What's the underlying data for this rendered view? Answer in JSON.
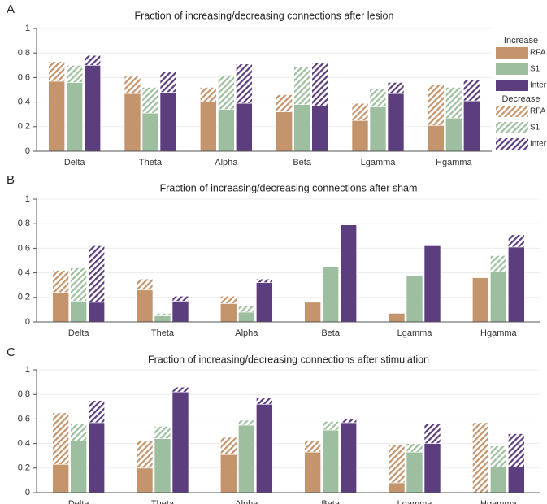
{
  "chart_data": [
    {
      "type": "bar",
      "label": "A",
      "title": "Fraction of increasing/decreasing connections after lesion",
      "categories": [
        "Delta",
        "Theta",
        "Alpha",
        "Beta",
        "Lgamma",
        "Hgamma"
      ],
      "ylim": [
        0,
        1
      ],
      "yticks": [
        0,
        0.2,
        0.4,
        0.6,
        0.8,
        1
      ],
      "grid": true,
      "legend_titles": [
        "Increase",
        "Decrease"
      ],
      "series": [
        {
          "name": "RFA",
          "color": "#c4956c",
          "hatch": false,
          "values": [
            0.57,
            0.47,
            0.4,
            0.32,
            0.25,
            0.21
          ]
        },
        {
          "name": "S1",
          "color": "#9ebf9f",
          "hatch": false,
          "values": [
            0.56,
            0.31,
            0.34,
            0.38,
            0.36,
            0.27
          ]
        },
        {
          "name": "Inter",
          "color": "#5c3d7e",
          "hatch": false,
          "values": [
            0.7,
            0.48,
            0.39,
            0.37,
            0.47,
            0.41
          ]
        },
        {
          "name": "RFA",
          "color": "#c4956c",
          "hatch": true,
          "values": [
            0.16,
            0.14,
            0.12,
            0.14,
            0.14,
            0.33
          ]
        },
        {
          "name": "S1",
          "color": "#9ebf9f",
          "hatch": true,
          "values": [
            0.14,
            0.21,
            0.28,
            0.31,
            0.15,
            0.25
          ]
        },
        {
          "name": "Inter",
          "color": "#5c3d7e",
          "hatch": true,
          "values": [
            0.08,
            0.17,
            0.32,
            0.35,
            0.09,
            0.17
          ]
        }
      ]
    },
    {
      "type": "bar",
      "label": "B",
      "title": "Fraction of increasing/decreasing connections after sham",
      "categories": [
        "Delta",
        "Theta",
        "Alpha",
        "Beta",
        "Lgamma",
        "Hgamma"
      ],
      "ylim": [
        0,
        1
      ],
      "yticks": [
        0,
        0.2,
        0.4,
        0.6,
        0.8,
        1
      ],
      "grid": true,
      "series": [
        {
          "color": "#c4956c",
          "hatch": false,
          "values": [
            0.24,
            0.26,
            0.15,
            0.16,
            0.07,
            0.36
          ]
        },
        {
          "color": "#9ebf9f",
          "hatch": false,
          "values": [
            0.17,
            0.05,
            0.08,
            0.45,
            0.38,
            0.41
          ]
        },
        {
          "color": "#5c3d7e",
          "hatch": false,
          "values": [
            0.16,
            0.17,
            0.32,
            0.79,
            0.62,
            0.61
          ]
        },
        {
          "color": "#c4956c",
          "hatch": true,
          "values": [
            0.18,
            0.09,
            0.06,
            0,
            0,
            0
          ]
        },
        {
          "color": "#9ebf9f",
          "hatch": true,
          "values": [
            0.27,
            0.02,
            0.05,
            0,
            0,
            0.13
          ]
        },
        {
          "color": "#5c3d7e",
          "hatch": true,
          "values": [
            0.46,
            0.04,
            0.03,
            0,
            0,
            0.1
          ]
        }
      ]
    },
    {
      "type": "bar",
      "label": "C",
      "title": "Fraction of increasing/decreasing connections after stimulation",
      "categories": [
        "Delta",
        "Theta",
        "Alpha",
        "Beta",
        "Lgamma",
        "Hgamma"
      ],
      "ylim": [
        0,
        1
      ],
      "yticks": [
        0,
        0.2,
        0.4,
        0.6,
        0.8,
        1
      ],
      "grid": true,
      "series": [
        {
          "color": "#c4956c",
          "hatch": false,
          "values": [
            0.23,
            0.2,
            0.31,
            0.33,
            0.08,
            0
          ]
        },
        {
          "color": "#9ebf9f",
          "hatch": false,
          "values": [
            0.42,
            0.44,
            0.55,
            0.51,
            0.33,
            0.21
          ]
        },
        {
          "color": "#5c3d7e",
          "hatch": false,
          "values": [
            0.57,
            0.82,
            0.72,
            0.57,
            0.4,
            0.21
          ]
        },
        {
          "color": "#c4956c",
          "hatch": true,
          "values": [
            0.42,
            0.22,
            0.14,
            0.09,
            0.31,
            0.57
          ]
        },
        {
          "color": "#9ebf9f",
          "hatch": true,
          "values": [
            0.14,
            0.1,
            0.04,
            0.07,
            0.07,
            0.17
          ]
        },
        {
          "color": "#5c3d7e",
          "hatch": true,
          "values": [
            0.18,
            0.04,
            0.05,
            0.03,
            0.16,
            0.27
          ]
        }
      ]
    }
  ]
}
